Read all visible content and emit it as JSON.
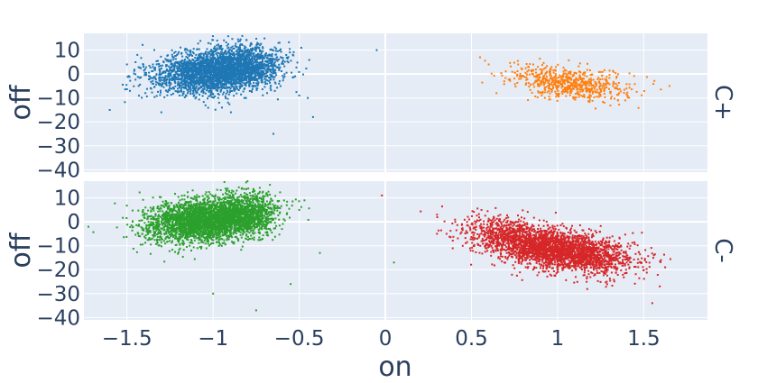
{
  "chart_data": {
    "type": "scatter",
    "xlabel": "on",
    "ylabel": "off",
    "xlim": [
      -1.75,
      1.87
    ],
    "x_ticks": [
      -1.5,
      -1,
      -0.5,
      0,
      0.5,
      1,
      1.5
    ],
    "x_tick_labels": [
      "−1.5",
      "−1",
      "−0.5",
      "0",
      "0.5",
      "1",
      "1.5"
    ],
    "ylim": [
      -41,
      17
    ],
    "y_ticks": [
      10,
      0,
      -10,
      -20,
      -30,
      -40
    ],
    "y_tick_labels": [
      "10",
      "0",
      "−10",
      "−20",
      "−30",
      "−40"
    ],
    "grid": true,
    "colors": {
      "background": "#e5ecf6",
      "grid": "#ffffff",
      "text": "#2a3f5f",
      "blue": "#1f77b4",
      "orange": "#ff7f0e",
      "green": "#2ca02c",
      "red": "#d62728"
    },
    "facets": [
      {
        "label": "C+",
        "series": [
          {
            "color": "#1f77b4",
            "clusters": [
              {
                "cx": -1.0,
                "cy": 1.0,
                "sx": 0.17,
                "sy": 4.5,
                "n": 2600,
                "slope": 6
              },
              {
                "cx": -0.8,
                "cy": 3.5,
                "sx": 0.1,
                "sy": 4.5,
                "n": 700,
                "slope": 4
              }
            ],
            "outliers": [
              [
                -1.6,
                -15
              ],
              [
                -0.65,
                -25
              ],
              [
                -0.42,
                -18
              ],
              [
                -0.45,
                -10
              ],
              [
                -0.05,
                10
              ],
              [
                -0.5,
                -9
              ],
              [
                -1.5,
                4
              ]
            ]
          },
          {
            "color": "#ff7f0e",
            "clusters": [
              {
                "cx": 1.08,
                "cy": -4,
                "sx": 0.18,
                "sy": 3.3,
                "n": 650,
                "slope": -7
              }
            ],
            "outliers": [
              [
                0.55,
                7
              ],
              [
                0.6,
                4
              ],
              [
                1.65,
                -5
              ]
            ]
          }
        ]
      },
      {
        "label": "C-",
        "series": [
          {
            "color": "#2ca02c",
            "clusters": [
              {
                "cx": -1.05,
                "cy": 0.5,
                "sx": 0.17,
                "sy": 4.5,
                "n": 2800,
                "slope": 6
              },
              {
                "cx": -0.82,
                "cy": 3.5,
                "sx": 0.1,
                "sy": 4.5,
                "n": 900,
                "slope": 4
              }
            ],
            "outliers": [
              [
                -1.0,
                -30
              ],
              [
                -0.75,
                -37
              ],
              [
                -0.55,
                -26
              ],
              [
                -0.38,
                -13
              ],
              [
                -0.6,
                -3
              ],
              [
                -0.5,
                5
              ],
              [
                0.05,
                -17
              ]
            ]
          },
          {
            "color": "#d62728",
            "clusters": [
              {
                "cx": 1.02,
                "cy": -12,
                "sx": 0.2,
                "sy": 4.0,
                "n": 2600,
                "slope": -9
              },
              {
                "cx": 0.7,
                "cy": -5,
                "sx": 0.14,
                "sy": 3.5,
                "n": 500,
                "slope": -9
              }
            ],
            "outliers": [
              [
                -0.02,
                11
              ],
              [
                1.55,
                -34
              ],
              [
                1.6,
                -16
              ],
              [
                0.3,
                3
              ],
              [
                0.3,
                -5
              ]
            ]
          }
        ]
      }
    ]
  }
}
